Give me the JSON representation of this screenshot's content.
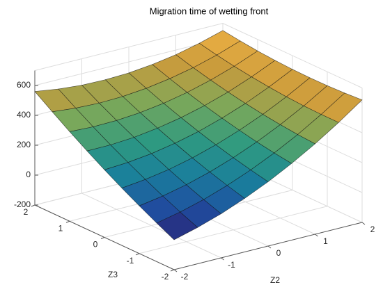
{
  "chart_data": {
    "type": "surface",
    "title": "Migration time of wetting front",
    "xlabel": "Z2",
    "ylabel": "Z3",
    "x": [
      -2,
      -1.5,
      -1,
      -0.5,
      0,
      0.5,
      1,
      1.5,
      2
    ],
    "y": [
      -2,
      -1.5,
      -1,
      -0.5,
      0,
      0.5,
      1,
      1.5,
      2
    ],
    "z": [
      [
        0,
        43,
        95,
        158,
        230,
        313,
        405,
        508,
        620
      ],
      [
        58,
        92,
        136,
        191,
        255,
        329,
        413,
        508,
        612
      ],
      [
        119,
        145,
        181,
        227,
        283,
        349,
        425,
        511,
        607
      ],
      [
        184,
        202,
        229,
        267,
        315,
        373,
        440,
        518,
        606
      ],
      [
        252,
        262,
        281,
        311,
        350,
        400,
        459,
        529,
        608
      ],
      [
        324,
        325,
        336,
        358,
        389,
        430,
        481,
        543,
        614
      ],
      [
        399,
        392,
        395,
        408,
        431,
        464,
        507,
        560,
        623
      ],
      [
        478,
        463,
        457,
        462,
        477,
        502,
        536,
        581,
        636
      ],
      [
        560,
        537,
        523,
        520,
        526,
        543,
        569,
        606,
        652
      ]
    ],
    "xlim": [
      -2,
      2
    ],
    "ylim": [
      -2,
      2
    ],
    "zlim": [
      -200,
      700
    ],
    "xticks": [
      -2,
      -1,
      0,
      1,
      2
    ],
    "yticks": [
      -2,
      -1,
      0,
      1,
      2
    ],
    "zticks": [
      -200,
      0,
      200,
      400,
      600
    ],
    "grid": true,
    "colormap": [
      "#2b1f72",
      "#1f4fa0",
      "#1a7f9c",
      "#2f9a80",
      "#7aa85a",
      "#c99b3c",
      "#eeb043"
    ]
  }
}
